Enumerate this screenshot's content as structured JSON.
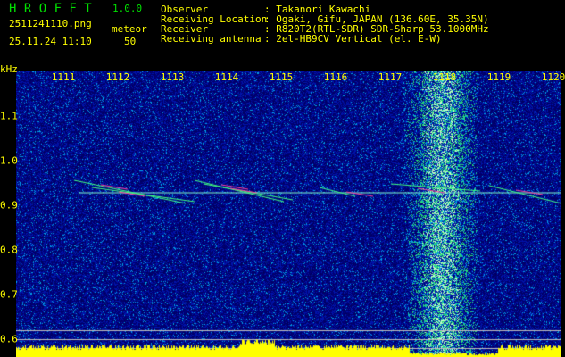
{
  "app": {
    "name": "H R O F F T",
    "version": "1.0.0"
  },
  "file": {
    "name": "2511241110.png",
    "datetime": "25.11.24 11:10",
    "label": "meteor",
    "count": "50"
  },
  "info": [
    {
      "key": "Observer",
      "value": ": Takanori Kawachi"
    },
    {
      "key": "Receiving Location",
      "value": ": Ogaki, Gifu, JAPAN (136.60E, 35.35N)"
    },
    {
      "key": "Receiver",
      "value": ": R820T2(RTL-SDR) SDR-Sharp 53.1000MHz"
    },
    {
      "key": "Receiving antenna",
      "value": ": 2el-HB9CV Vertical (el. E-W)"
    }
  ],
  "axis": {
    "y_unit": "kHz",
    "x_ticks": [
      "1111",
      "1112",
      "1113",
      "1114",
      "1115",
      "1116",
      "1117",
      "1118",
      "1119",
      "1120"
    ],
    "y_ticks": [
      "1.1",
      "1.0",
      "0.9",
      "0.8",
      "0.7",
      "0.6"
    ]
  },
  "colors": {
    "text": "#ffff00",
    "title": "#00e000",
    "background_noise": "#0010a0",
    "histogram": "#ffff00"
  }
}
